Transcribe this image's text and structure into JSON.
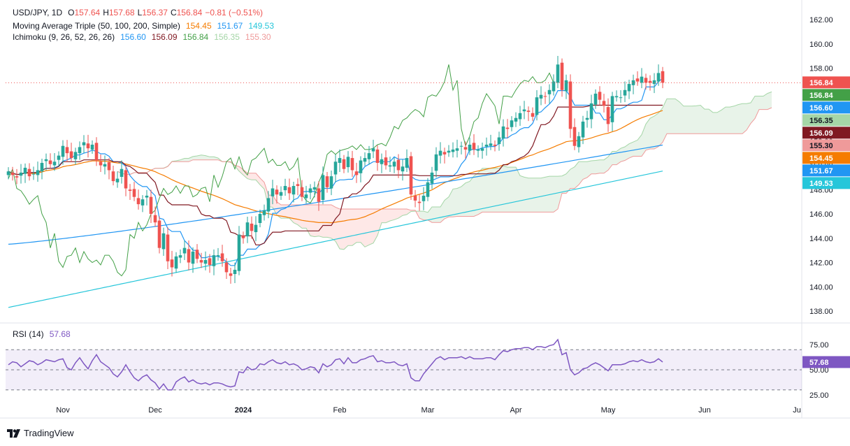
{
  "header": {
    "symbol": "USD/JPY, 1D",
    "o_label": "O",
    "o_val": "157.64",
    "h_label": "H",
    "h_val": "157.68",
    "l_label": "L",
    "l_val": "156.37",
    "c_label": "C",
    "c_val": "156.84",
    "change": "−0.81 (−0.51%)"
  },
  "ma_legend": {
    "label": "Moving Average Triple (50, 100, 200, Simple)",
    "v1": "154.45",
    "v2": "151.67",
    "v3": "149.53",
    "c1": "#f57c00",
    "c2": "#2196f3",
    "c3": "#26c6da"
  },
  "ichi_legend": {
    "label": "Ichimoku (9, 26, 52, 26, 26)",
    "v1": "156.60",
    "v2": "156.09",
    "v3": "156.84",
    "v4": "156.35",
    "v5": "155.30",
    "c1": "#2196f3",
    "c2": "#801922",
    "c3": "#43a047",
    "c4": "#a5d6a7",
    "c5": "#ef9a9a"
  },
  "rsi_legend": {
    "label": "RSI (14)",
    "value": "57.68",
    "color": "#7e57c2"
  },
  "brand": {
    "name": "TradingView"
  },
  "chart_data": {
    "type": "candlestick",
    "symbol": "USD/JPY",
    "timeframe": "1D",
    "ylim": [
      137.0,
      163.0
    ],
    "y_ticks": [
      "162.00",
      "160.00",
      "158.00",
      "156.00",
      "154.00",
      "152.00",
      "150.00",
      "148.00",
      "146.00",
      "144.00",
      "142.00",
      "140.00",
      "138.00"
    ],
    "x_ticks": [
      {
        "label": "Nov",
        "index": 13
      },
      {
        "label": "Dec",
        "index": 35
      },
      {
        "label": "2024",
        "index": 56
      },
      {
        "label": "Feb",
        "index": 79
      },
      {
        "label": "Mar",
        "index": 100
      },
      {
        "label": "Apr",
        "index": 121
      },
      {
        "label": "May",
        "index": 143
      },
      {
        "label": "Jun",
        "index": 166
      },
      {
        "label": "Ju",
        "index": 188
      }
    ],
    "price_badges": [
      {
        "label": "156.84",
        "bg": "#ef5350",
        "fg": "#ffffff"
      },
      {
        "label": "156.84",
        "bg": "#43a047",
        "fg": "#ffffff"
      },
      {
        "label": "156.60",
        "bg": "#2196f3",
        "fg": "#ffffff"
      },
      {
        "label": "156.35",
        "bg": "#a5d6a7",
        "fg": "#131722"
      },
      {
        "label": "156.09",
        "bg": "#801922",
        "fg": "#ffffff"
      },
      {
        "label": "155.30",
        "bg": "#ef9a9a",
        "fg": "#131722"
      },
      {
        "label": "154.45",
        "bg": "#f57c00",
        "fg": "#ffffff"
      },
      {
        "label": "151.67",
        "bg": "#2196f3",
        "fg": "#ffffff"
      },
      {
        "label": "149.53",
        "bg": "#26c6da",
        "fg": "#ffffff"
      }
    ],
    "candles_close": [
      149.5,
      149.2,
      149.0,
      149.4,
      149.8,
      149.1,
      149.3,
      149.6,
      150.2,
      150.5,
      150.1,
      150.3,
      150.8,
      151.6,
      151.0,
      150.6,
      151.1,
      151.5,
      151.9,
      151.4,
      151.7,
      150.4,
      150.0,
      150.1,
      149.6,
      148.7,
      148.9,
      149.7,
      148.1,
      147.9,
      147.4,
      146.8,
      147.2,
      147.5,
      146.0,
      145.3,
      143.2,
      144.4,
      142.1,
      141.6,
      142.5,
      142.6,
      143.2,
      142.0,
      142.9,
      142.3,
      142.0,
      142.2,
      141.8,
      142.6,
      142.6,
      142.1,
      141.2,
      140.9,
      141.4,
      144.3,
      144.0,
      145.3,
      144.6,
      145.1,
      146.0,
      146.3,
      147.3,
      148.1,
      147.6,
      147.8,
      148.3,
      147.7,
      148.3,
      148.3,
      147.4,
      147.6,
      148.1,
      148.2,
      147.0,
      149.2,
      148.2,
      149.1,
      150.3,
      150.6,
      149.7,
      150.7,
      149.6,
      149.2,
      150.4,
      150.6,
      151.0,
      151.4,
      150.2,
      150.5,
      150.0,
      150.0,
      150.3,
      149.6,
      149.9,
      150.6,
      147.6,
      147.1,
      146.9,
      147.5,
      148.6,
      149.4,
      150.9,
      151.2,
      150.9,
      151.2,
      151.3,
      151.4,
      151.6,
      151.3,
      151.7,
      151.3,
      151.3,
      151.4,
      151.7,
      151.8,
      151.6,
      152.3,
      153.2,
      153.0,
      153.7,
      153.9,
      154.3,
      154.6,
      154.4,
      154.0,
      155.6,
      155.8,
      155.7,
      156.2,
      156.9,
      158.3,
      156.2,
      157.0,
      153.0,
      151.6,
      152.4,
      153.6,
      153.9,
      155.1,
      155.9,
      155.4,
      154.9,
      153.4,
      155.7,
      155.7,
      155.6,
      156.2,
      156.7,
      157.0,
      156.9,
      157.3,
      156.8,
      156.8,
      157.0,
      157.6,
      156.8
    ],
    "sma50_endpoints": [
      146.2,
      154.45
    ],
    "sma100_endpoints": [
      143.5,
      151.67
    ],
    "sma200_endpoints": [
      138.3,
      149.53
    ],
    "tenkan_last": 156.6,
    "kijun_last": 156.09,
    "chikou_last": 156.84,
    "span_a_last": 156.35,
    "span_b_last": 155.3,
    "rsi": {
      "ylim": [
        20,
        100
      ],
      "y_ticks": [
        "75.00",
        "50.00",
        "25.00"
      ],
      "upper": 70,
      "lower": 30,
      "values": [
        55,
        58,
        57,
        53,
        56,
        59,
        58,
        55,
        57,
        60,
        59,
        58,
        60,
        61,
        52,
        50,
        57,
        62,
        56,
        51,
        59,
        65,
        58,
        55,
        52,
        46,
        43,
        48,
        55,
        48,
        42,
        39,
        43,
        45,
        40,
        37,
        31,
        36,
        30,
        30,
        38,
        41,
        43,
        38,
        40,
        37,
        36,
        37,
        35,
        37,
        37,
        36,
        34,
        33,
        34,
        48,
        47,
        53,
        50,
        51,
        56,
        55,
        58,
        60,
        57,
        56,
        58,
        55,
        56,
        54,
        50,
        51,
        53,
        52,
        47,
        56,
        53,
        55,
        60,
        61,
        56,
        62,
        57,
        57,
        60,
        61,
        63,
        64,
        58,
        59,
        57,
        57,
        58,
        55,
        54,
        56,
        42,
        39,
        39,
        46,
        51,
        56,
        61,
        63,
        60,
        62,
        62,
        62,
        63,
        61,
        63,
        61,
        61,
        61,
        62,
        62,
        60,
        65,
        69,
        68,
        70,
        71,
        71,
        72,
        72,
        70,
        73,
        73,
        72,
        74,
        75,
        80,
        65,
        67,
        50,
        45,
        47,
        51,
        52,
        55,
        57,
        55,
        52,
        49,
        55,
        55,
        55,
        56,
        58,
        59,
        58,
        60,
        58,
        57,
        58,
        61,
        57.68
      ]
    }
  }
}
